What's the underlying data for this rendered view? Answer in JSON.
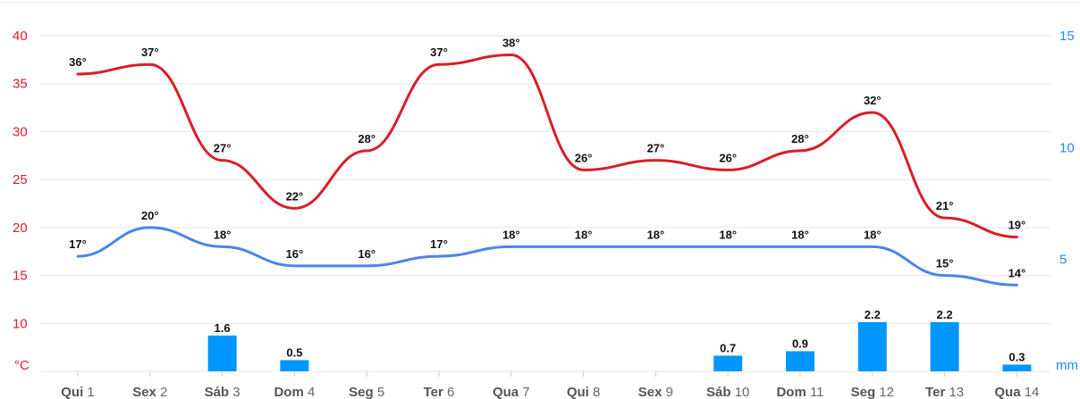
{
  "chart_data": {
    "type": "line",
    "categories": [
      {
        "day": "Qui",
        "num": "1"
      },
      {
        "day": "Sex",
        "num": "2"
      },
      {
        "day": "Sáb",
        "num": "3"
      },
      {
        "day": "Dom",
        "num": "4"
      },
      {
        "day": "Seg",
        "num": "5"
      },
      {
        "day": "Ter",
        "num": "6"
      },
      {
        "day": "Qua",
        "num": "7"
      },
      {
        "day": "Qui",
        "num": "8"
      },
      {
        "day": "Sex",
        "num": "9"
      },
      {
        "day": "Sáb",
        "num": "10"
      },
      {
        "day": "Dom",
        "num": "11"
      },
      {
        "day": "Seg",
        "num": "12"
      },
      {
        "day": "Ter",
        "num": "13"
      },
      {
        "day": "Qua",
        "num": "14"
      }
    ],
    "series": [
      {
        "values": [
          36,
          37,
          27,
          22,
          28,
          37,
          38,
          26,
          27,
          26,
          28,
          32,
          21,
          19
        ],
        "labels": [
          "36°",
          "37°",
          "27°",
          "22°",
          "28°",
          "37°",
          "38°",
          "26°",
          "27°",
          "26°",
          "28°",
          "32°",
          "21°",
          "19°"
        ],
        "color": "#d81f26",
        "axis": "left",
        "kind": "line"
      },
      {
        "values": [
          17,
          20,
          18,
          16,
          16,
          17,
          18,
          18,
          18,
          18,
          18,
          18,
          15,
          14
        ],
        "labels": [
          "17°",
          "20°",
          "18°",
          "16°",
          "16°",
          "17°",
          "18°",
          "18°",
          "18°",
          "18°",
          "18°",
          "18°",
          "15°",
          "14°"
        ],
        "color": "#4a86e8",
        "axis": "left",
        "kind": "line"
      },
      {
        "values": [
          0,
          0,
          1.6,
          0.5,
          0,
          0,
          0,
          0,
          0,
          0.7,
          0.9,
          2.2,
          2.2,
          0.3
        ],
        "labels": [
          "",
          "",
          "1.6",
          "0.5",
          "",
          "",
          "",
          "",
          "",
          "0.7",
          "0.9",
          "2.2",
          "2.2",
          "0.3"
        ],
        "color": "#0096ff",
        "axis": "right",
        "kind": "bar"
      }
    ],
    "y_left": {
      "unit": "°C",
      "ticks": [
        "40",
        "35",
        "30",
        "25",
        "20",
        "15",
        "10"
      ],
      "range": [
        5,
        40
      ],
      "color": "#d81f26"
    },
    "y_right": {
      "unit": "mm",
      "ticks": [
        "15",
        "10",
        "5"
      ],
      "range": [
        0,
        15
      ],
      "color": "#1a8cff"
    },
    "grid": true,
    "legend": "none"
  }
}
